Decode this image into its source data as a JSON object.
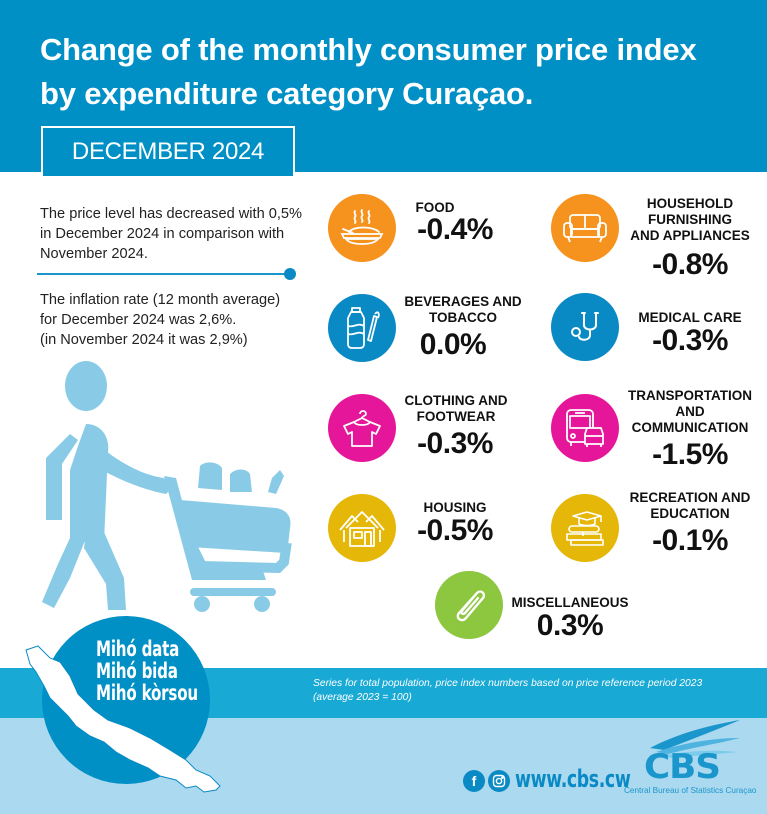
{
  "header": {
    "title_line1": "Change of the monthly consumer price index",
    "title_line2": "by expenditure category Curaçao.",
    "month": "DECEMBER 2024",
    "bg_color": "#0090c5"
  },
  "summary": {
    "price_level": "The price level has decreased with 0,5% in December 2024 in comparison with November 2024.",
    "inflation_line1": "The inflation rate (12 month average)",
    "inflation_line2": "for December 2024 was 2,6%.",
    "inflation_line3": "(in November 2024 it was 2,9%)"
  },
  "categories": [
    {
      "label_lines": [
        "FOOD"
      ],
      "value": "-0.4%",
      "color": "#f6921e",
      "icon": "food-bowl-icon"
    },
    {
      "label_lines": [
        "HOUSEHOLD",
        "FURNISHING",
        "AND APPLIANCES"
      ],
      "value": "-0.8%",
      "color": "#f6921e",
      "icon": "sofa-icon"
    },
    {
      "label_lines": [
        "BEVERAGES AND",
        "TOBACCO"
      ],
      "value": "0.0%",
      "color": "#0a8ac4",
      "icon": "bottle-cigarette-icon"
    },
    {
      "label_lines": [
        "MEDICAL CARE"
      ],
      "value": "-0.3%",
      "color": "#0a8ac4",
      "icon": "stethoscope-icon"
    },
    {
      "label_lines": [
        "CLOTHING AND",
        "FOOTWEAR"
      ],
      "value": "-0.3%",
      "color": "#e6169a",
      "icon": "shirt-hanger-icon"
    },
    {
      "label_lines": [
        "TRANSPORTATION",
        "AND",
        "COMMUNICATION"
      ],
      "value": "-1.5%",
      "color": "#e6169a",
      "icon": "bus-car-icon"
    },
    {
      "label_lines": [
        "HOUSING"
      ],
      "value": "-0.5%",
      "color": "#e5b709",
      "icon": "house-icon"
    },
    {
      "label_lines": [
        "RECREATION AND",
        "EDUCATION"
      ],
      "value": "-0.1%",
      "color": "#e5b709",
      "icon": "books-graduation-cap-icon"
    },
    {
      "label_lines": [
        "MISCELLANEOUS"
      ],
      "value": "0.3%",
      "color": "#8dc63f",
      "icon": "paperclip-icon"
    }
  ],
  "footer": {
    "note_line1": "Series for total population, price index numbers based on price reference period 2023",
    "note_line2": "(average 2023 = 100)",
    "slogan": [
      "Mihó data",
      "Mihó bida",
      "Mihó kòrsou"
    ],
    "website": "www.cbs.cw",
    "logo_text": "CBS",
    "logo_subtitle": "Central Bureau of Statistics Curaçao",
    "band_color": "#19a9d5",
    "bottom_color": "#abd9ef"
  }
}
